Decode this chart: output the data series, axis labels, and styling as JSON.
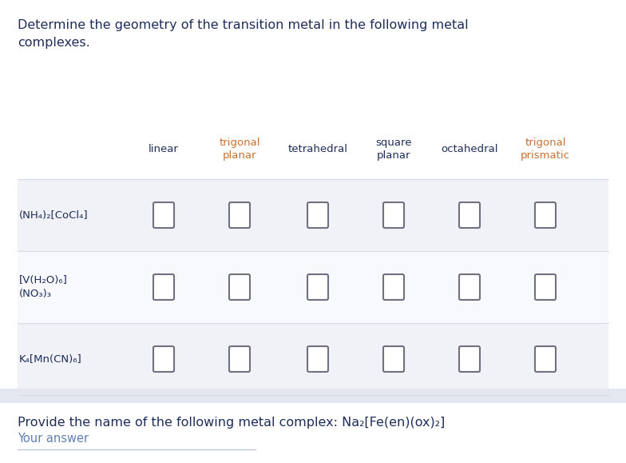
{
  "title_text": "Determine the geometry of the transition metal in the following metal\ncomplexes.",
  "title_color": "#1f2d5a",
  "title_fontsize": 11.5,
  "bg_color": "#ffffff",
  "row_bg_even": "#f0f2f8",
  "row_bg_odd": "#f8f9fc",
  "col_headers": [
    "linear",
    "trigonal\nplanar",
    "tetrahedral",
    "square\nplanar",
    "octahedral",
    "trigonal\nprismatic"
  ],
  "col_header_colors": [
    "#1f2d5a",
    "#c87030",
    "#1f2d5a",
    "#1f2d5a",
    "#1f2d5a",
    "#c87030"
  ],
  "row_labels": [
    "(NH₄)₂[CoCl₄]",
    "[V(H₂O)₆]\n(NO₃)₃",
    "K₄[Mn(CN)₆]"
  ],
  "row_label_color": "#1f2d5a",
  "separator_color": "#d8dae8",
  "checkbox_edge_color": "#707080",
  "checkbox_face_color": "#ffffff",
  "second_question_text": "Provide the name of the following metal complex: Na₂[Fe(en)(ox)₂]",
  "second_question_color": "#1f2d5a",
  "second_question_fontsize": 11.5,
  "answer_placeholder": "Your answer",
  "answer_color": "#6080b0",
  "answer_fontsize": 10.5,
  "answer_line_color": "#c0c8d8",
  "divider_color": "#d8dae8"
}
